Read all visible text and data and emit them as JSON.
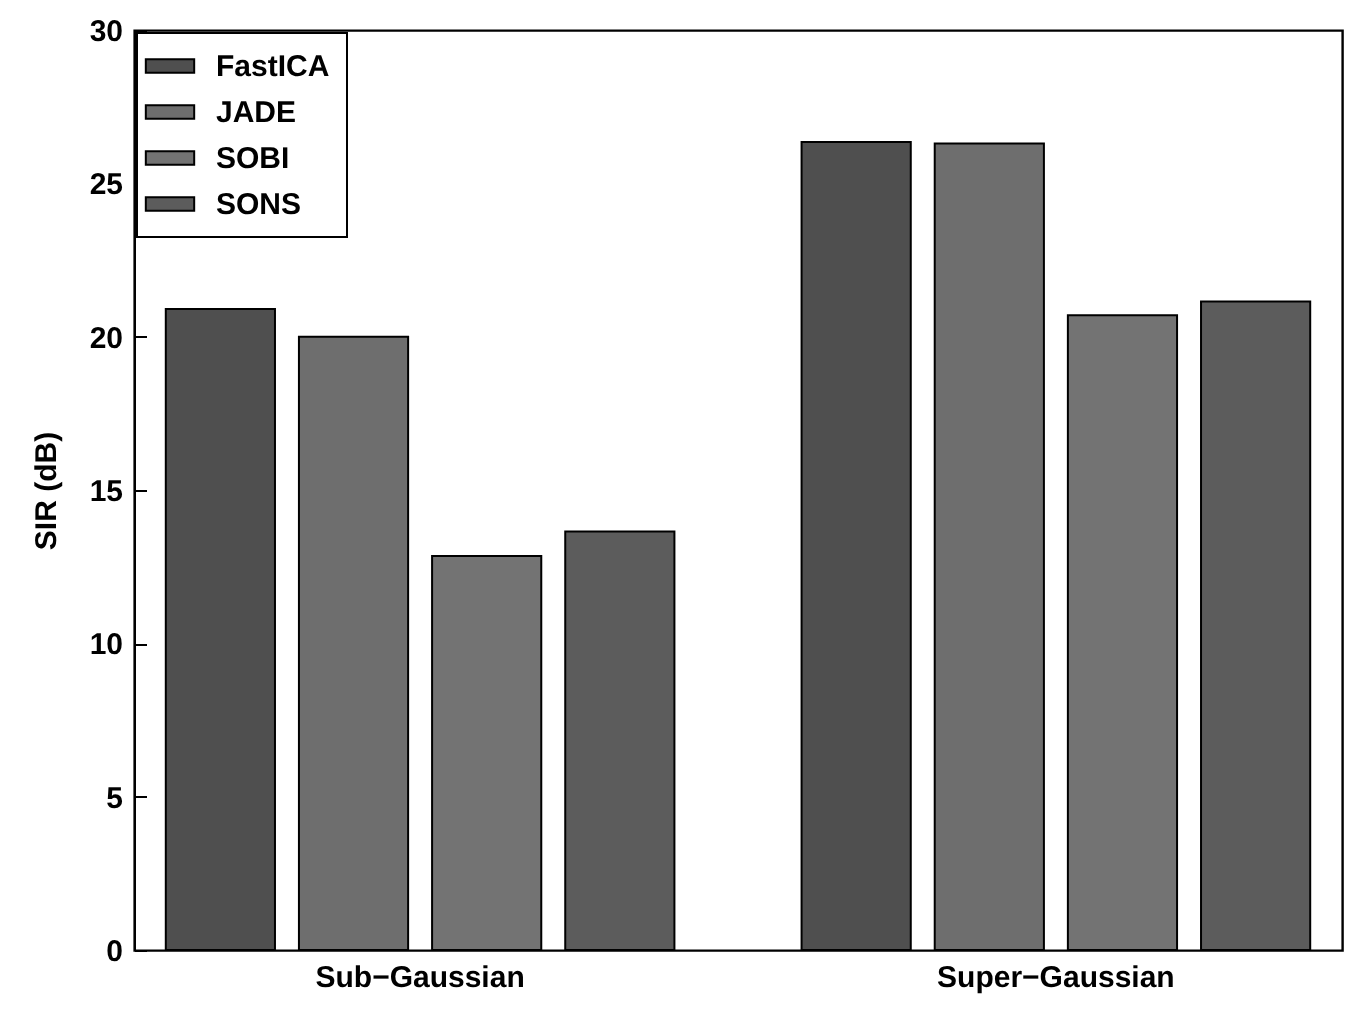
{
  "chart_data": {
    "type": "bar",
    "ylabel": "SIR (dB)",
    "categories": [
      "Sub−Gaussian",
      "Super−Gaussian"
    ],
    "series": [
      {
        "name": "FastICA",
        "color": "#4f4f4f",
        "values": [
          20.9,
          26.35
        ]
      },
      {
        "name": "JADE",
        "color": "#6e6e6e",
        "values": [
          20.0,
          26.3
        ]
      },
      {
        "name": "SOBI",
        "color": "#737373",
        "values": [
          12.85,
          20.7
        ]
      },
      {
        "name": "SONS",
        "color": "#5c5c5c",
        "values": [
          13.65,
          21.15
        ]
      }
    ],
    "ylim": [
      0,
      30
    ],
    "yticks": [
      0,
      5,
      10,
      15,
      20,
      25,
      30
    ],
    "grid": false,
    "legend": "top left"
  }
}
